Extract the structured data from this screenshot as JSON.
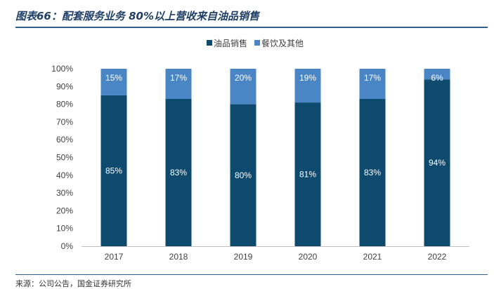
{
  "figure": {
    "title": "图表66：配套服务业务 80%以上营收来自油品销售",
    "source": "来源：公司公告，国金证券研究所"
  },
  "chart_data": {
    "type": "bar",
    "stacked": true,
    "categories": [
      "2017",
      "2018",
      "2019",
      "2020",
      "2021",
      "2022"
    ],
    "series": [
      {
        "name": "油品销售",
        "values": [
          85,
          83,
          80,
          81,
          83,
          94
        ],
        "color": "#0d4a6e",
        "label_color": "#ffffff"
      },
      {
        "name": "餐饮及其他",
        "values": [
          15,
          17,
          20,
          19,
          17,
          6
        ],
        "color": "#4a86c5",
        "label_color": "#ffffff"
      }
    ],
    "ylim": [
      0,
      100
    ],
    "yticks": [
      "0%",
      "10%",
      "20%",
      "30%",
      "40%",
      "50%",
      "60%",
      "70%",
      "80%",
      "90%",
      "100%"
    ],
    "value_suffix": "%",
    "legend_position": "top-center",
    "grid": false
  }
}
